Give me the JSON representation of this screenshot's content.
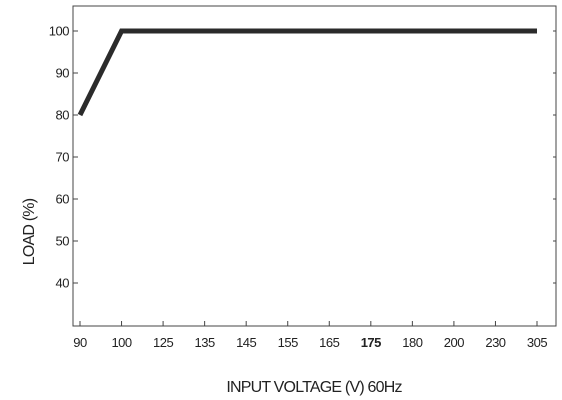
{
  "chart_data": {
    "type": "line",
    "xlabel": "INPUT VOLTAGE (V) 60Hz",
    "ylabel": "LOAD (%)",
    "categories": [
      "90",
      "100",
      "125",
      "135",
      "145",
      "155",
      "165",
      "175",
      "180",
      "200",
      "230",
      "305"
    ],
    "x_tick_bold": [
      "175"
    ],
    "y_ticks": [
      40,
      50,
      60,
      70,
      80,
      90,
      100
    ],
    "ylim": [
      30,
      104
    ],
    "grid": false,
    "series": [
      {
        "points": [
          {
            "x": "90",
            "y": 80
          },
          {
            "x": "100",
            "y": 100
          },
          {
            "x": "305",
            "y": 100
          }
        ]
      }
    ],
    "colors": {
      "line": "#2b2b2b",
      "axis": "#444444"
    }
  }
}
